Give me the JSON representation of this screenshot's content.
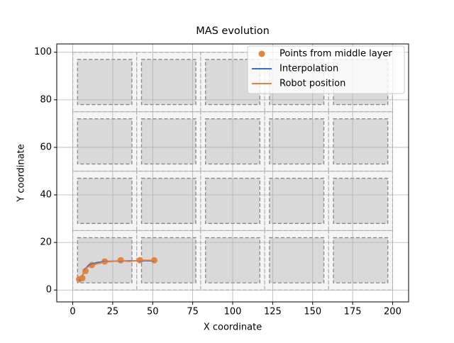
{
  "chart_data": {
    "type": "line",
    "title": "MAS evolution",
    "x_label": "X coordinate",
    "y_label": "Y coordinate",
    "xlim": [
      -10,
      210
    ],
    "ylim": [
      -5,
      103.5
    ],
    "xticks": [
      0,
      25,
      50,
      75,
      100,
      125,
      150,
      175,
      200
    ],
    "yticks": [
      0,
      20,
      40,
      60,
      80,
      100
    ],
    "grid": true,
    "legend": "upper right",
    "cells": [
      [
        0,
        0,
        40,
        25
      ],
      [
        40,
        0,
        80,
        25
      ],
      [
        80,
        0,
        120,
        25
      ],
      [
        120,
        0,
        160,
        25
      ],
      [
        160,
        0,
        200,
        25
      ],
      [
        0,
        25,
        40,
        50
      ],
      [
        40,
        25,
        80,
        50
      ],
      [
        80,
        25,
        120,
        50
      ],
      [
        120,
        25,
        160,
        50
      ],
      [
        160,
        25,
        200,
        50
      ],
      [
        0,
        50,
        40,
        75
      ],
      [
        40,
        50,
        80,
        75
      ],
      [
        80,
        50,
        120,
        75
      ],
      [
        120,
        50,
        160,
        75
      ],
      [
        160,
        50,
        200,
        75
      ],
      [
        0,
        75,
        40,
        100
      ],
      [
        40,
        75,
        80,
        100
      ],
      [
        80,
        75,
        120,
        100
      ],
      [
        120,
        75,
        160,
        100
      ],
      [
        160,
        75,
        200,
        100
      ]
    ],
    "obstacles": [
      [
        3,
        3,
        37,
        22
      ],
      [
        43,
        3,
        77,
        22
      ],
      [
        83,
        3,
        117,
        22
      ],
      [
        123,
        3,
        157,
        22
      ],
      [
        163,
        3,
        197,
        22
      ],
      [
        3,
        28,
        37,
        47
      ],
      [
        43,
        28,
        77,
        47
      ],
      [
        83,
        28,
        117,
        47
      ],
      [
        123,
        28,
        157,
        47
      ],
      [
        163,
        28,
        197,
        47
      ],
      [
        3,
        53,
        37,
        72
      ],
      [
        43,
        53,
        77,
        72
      ],
      [
        83,
        53,
        117,
        72
      ],
      [
        123,
        53,
        157,
        72
      ],
      [
        163,
        53,
        197,
        72
      ],
      [
        3,
        78,
        37,
        97
      ],
      [
        43,
        78,
        77,
        97
      ],
      [
        83,
        78,
        117,
        97
      ],
      [
        123,
        78,
        157,
        97
      ],
      [
        163,
        78,
        197,
        97
      ]
    ],
    "series": [
      {
        "name": "Points from middle layer",
        "style": "points",
        "color": "#e5843f",
        "x": [
          4,
          6,
          8,
          12,
          20,
          30,
          42,
          51
        ],
        "values": [
          4.5,
          5,
          8,
          10.5,
          12,
          12.5,
          12.5,
          12.5
        ]
      },
      {
        "name": "Interpolation",
        "style": "line",
        "color": "#3a6fd0",
        "x": [
          4,
          6,
          8,
          10,
          15,
          20,
          30,
          40,
          51
        ],
        "values": [
          4,
          6,
          9,
          10.5,
          11.5,
          12,
          12.2,
          12.3,
          12.3
        ]
      },
      {
        "name": "Robot position",
        "style": "line",
        "color": "#e5843f",
        "x": [
          4,
          5,
          7,
          9,
          12,
          20,
          25,
          30,
          35,
          42,
          51
        ],
        "values": [
          4.5,
          5,
          7.5,
          9.5,
          10.5,
          11.8,
          12,
          12.5,
          12,
          12.5,
          12.5
        ]
      }
    ]
  }
}
